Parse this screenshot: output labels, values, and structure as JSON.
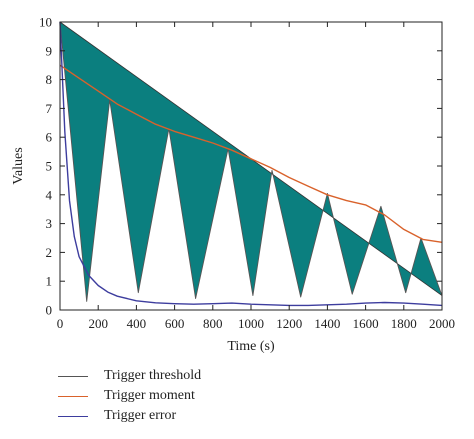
{
  "chart_data": {
    "type": "line",
    "xlabel": "Time (s)",
    "ylabel": "Values",
    "xlim": [
      0,
      2000
    ],
    "ylim": [
      0,
      10
    ],
    "xticks": [
      0,
      200,
      400,
      600,
      800,
      1000,
      1200,
      1400,
      1600,
      1800,
      2000
    ],
    "yticks": [
      0,
      1,
      2,
      3,
      4,
      5,
      6,
      7,
      8,
      9,
      10
    ],
    "threshold_line": {
      "x": [
        0,
        2000
      ],
      "y": [
        10,
        0.5
      ]
    },
    "series": [
      {
        "name": "Trigger threshold",
        "color": "#555555",
        "x": [
          0,
          140,
          260,
          410,
          570,
          710,
          880,
          1010,
          1110,
          1260,
          1400,
          1530,
          1680,
          1810,
          1890,
          2000
        ],
        "y": [
          10,
          0.3,
          7.3,
          0.6,
          6.3,
          0.4,
          5.6,
          0.5,
          4.85,
          0.45,
          4.05,
          0.55,
          3.6,
          0.6,
          2.5,
          0.5
        ]
      },
      {
        "name": "Trigger moment",
        "color": "#d9622b",
        "x": [
          0,
          100,
          200,
          300,
          400,
          500,
          600,
          700,
          800,
          900,
          1000,
          1100,
          1200,
          1300,
          1400,
          1500,
          1600,
          1700,
          1800,
          1900,
          2000
        ],
        "y": [
          8.5,
          8.05,
          7.6,
          7.15,
          6.8,
          6.45,
          6.2,
          6.0,
          5.8,
          5.55,
          5.25,
          4.95,
          4.6,
          4.3,
          4.0,
          3.8,
          3.65,
          3.3,
          2.8,
          2.45,
          2.35
        ]
      },
      {
        "name": "Trigger error",
        "color": "#3d3d9e",
        "x": [
          0,
          25,
          50,
          75,
          100,
          150,
          200,
          250,
          300,
          400,
          500,
          600,
          700,
          800,
          900,
          1000,
          1100,
          1200,
          1300,
          1400,
          1500,
          1600,
          1700,
          1800,
          1900,
          2000
        ],
        "y": [
          10,
          6.2,
          3.8,
          2.55,
          1.85,
          1.2,
          0.85,
          0.62,
          0.48,
          0.32,
          0.25,
          0.22,
          0.2,
          0.22,
          0.24,
          0.2,
          0.18,
          0.16,
          0.16,
          0.18,
          0.2,
          0.24,
          0.26,
          0.24,
          0.2,
          0.16
        ]
      }
    ],
    "fill_color": "#0b7f7f",
    "legend_position": "below-left",
    "grid": false
  }
}
